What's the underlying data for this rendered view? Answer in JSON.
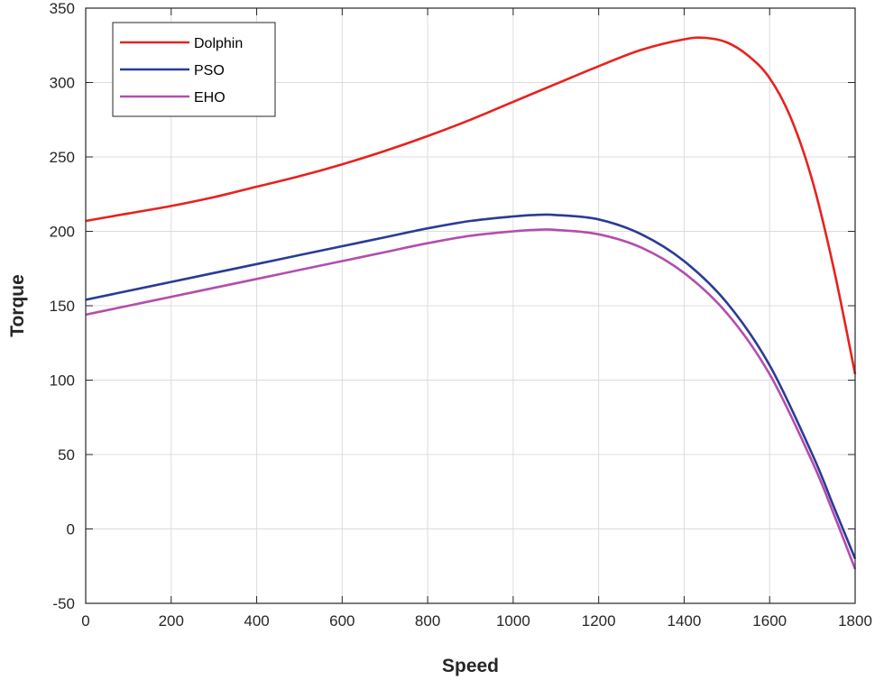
{
  "chart_data": {
    "type": "line",
    "title": "",
    "xlabel": "Speed",
    "ylabel": "Torque",
    "xlim": [
      0,
      1800
    ],
    "ylim": [
      -50,
      350
    ],
    "xticks": [
      0,
      200,
      400,
      600,
      800,
      1000,
      1200,
      1400,
      1600,
      1800
    ],
    "yticks": [
      -50,
      0,
      50,
      100,
      150,
      200,
      250,
      300,
      350
    ],
    "xtick_labels": [
      "0",
      "200",
      "400",
      "600",
      "800",
      "1000",
      "1200",
      "1400",
      "1600",
      "1800"
    ],
    "ytick_labels": [
      "-50",
      "0",
      "50",
      "100",
      "150",
      "200",
      "250",
      "300",
      "350"
    ],
    "grid": true,
    "legend_position": "top-left",
    "series": [
      {
        "name": "Dolphin",
        "color": "#e8221d",
        "x": [
          0,
          100,
          200,
          300,
          400,
          500,
          600,
          700,
          800,
          900,
          1000,
          1100,
          1200,
          1300,
          1400,
          1450,
          1500,
          1550,
          1600,
          1650,
          1700,
          1750,
          1800
        ],
        "y": [
          207,
          212,
          217,
          223,
          230,
          237,
          245,
          254,
          264,
          275,
          287,
          299,
          311,
          322,
          329,
          330,
          327,
          318,
          303,
          276,
          234,
          175,
          104
        ]
      },
      {
        "name": "PSO",
        "color": "#2b3b96",
        "x": [
          0,
          100,
          200,
          300,
          400,
          500,
          600,
          700,
          800,
          900,
          1000,
          1050,
          1100,
          1200,
          1300,
          1400,
          1500,
          1600,
          1700,
          1750,
          1800
        ],
        "y": [
          154,
          160,
          166,
          172,
          178,
          184,
          190,
          196,
          202,
          207,
          210,
          211,
          211,
          208,
          198,
          180,
          152,
          110,
          50,
          15,
          -20
        ]
      },
      {
        "name": "EHO",
        "color": "#b34dad",
        "x": [
          0,
          100,
          200,
          300,
          400,
          500,
          600,
          700,
          800,
          900,
          1000,
          1050,
          1100,
          1200,
          1300,
          1400,
          1500,
          1600,
          1700,
          1750,
          1800
        ],
        "y": [
          144,
          150,
          156,
          162,
          168,
          174,
          180,
          186,
          192,
          197,
          200,
          201,
          201,
          198,
          189,
          172,
          145,
          104,
          45,
          10,
          -27
        ]
      }
    ]
  }
}
